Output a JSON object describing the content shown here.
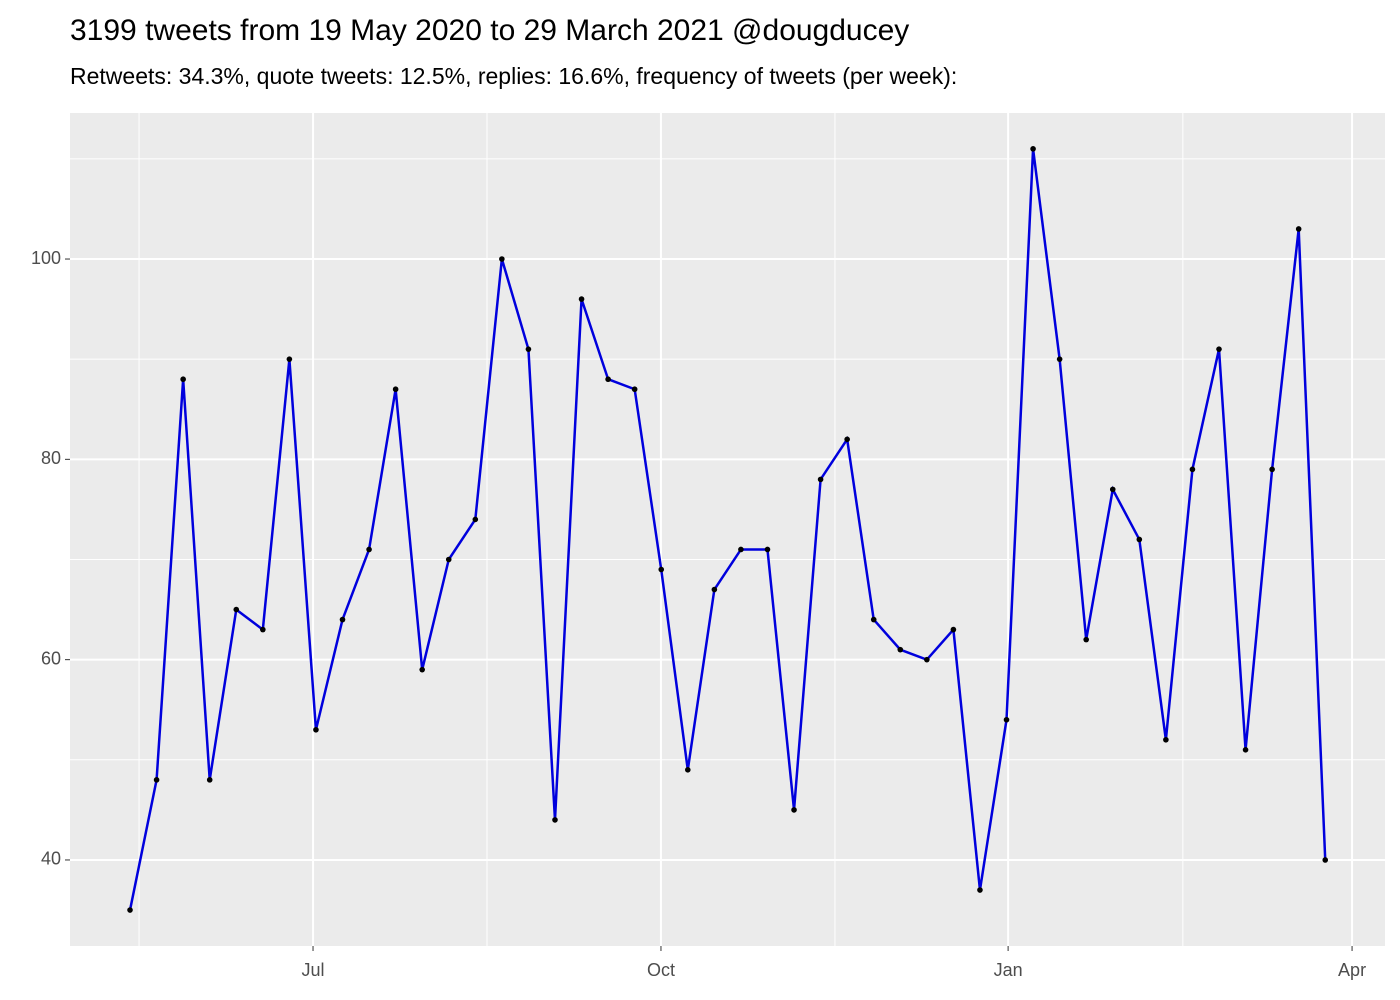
{
  "chart_data": {
    "type": "line",
    "title": "3199 tweets from 19 May 2020 to 29 March 2021 @dougducey",
    "subtitle": "Retweets: 34.3%, quote tweets: 12.5%, replies: 16.6%, frequency of tweets (per week):",
    "x": [
      0,
      1,
      2,
      3,
      4,
      5,
      6,
      7,
      8,
      9,
      10,
      11,
      12,
      13,
      14,
      15,
      16,
      17,
      18,
      19,
      20,
      21,
      22,
      23,
      24,
      25,
      26,
      27,
      28,
      29,
      30,
      31,
      32,
      33,
      34,
      35,
      36,
      37,
      38,
      39,
      40,
      41,
      42,
      43,
      44,
      45
    ],
    "series": [
      {
        "color": "#0000dd",
        "values": [
          35,
          48,
          88,
          48,
          65,
          63,
          90,
          53,
          64,
          71,
          87,
          59,
          70,
          74,
          100,
          91,
          44,
          96,
          88,
          87,
          69,
          49,
          67,
          71,
          71,
          45,
          78,
          82,
          64,
          61,
          60,
          63,
          37,
          54,
          111,
          90,
          62,
          77,
          72,
          52,
          79,
          91,
          51,
          79,
          103,
          40
        ]
      }
    ],
    "xlim": [
      -2.26,
      47.25
    ],
    "xticks": [
      {
        "value": 6.89,
        "label": "Jul"
      },
      {
        "value": 19.99,
        "label": "Oct"
      },
      {
        "value": 33.06,
        "label": "Jan"
      },
      {
        "value": 46.01,
        "label": "Apr"
      }
    ],
    "ylim": [
      31.41,
      114.58
    ],
    "yticks": [
      40,
      60,
      80,
      100
    ],
    "grid": true
  }
}
